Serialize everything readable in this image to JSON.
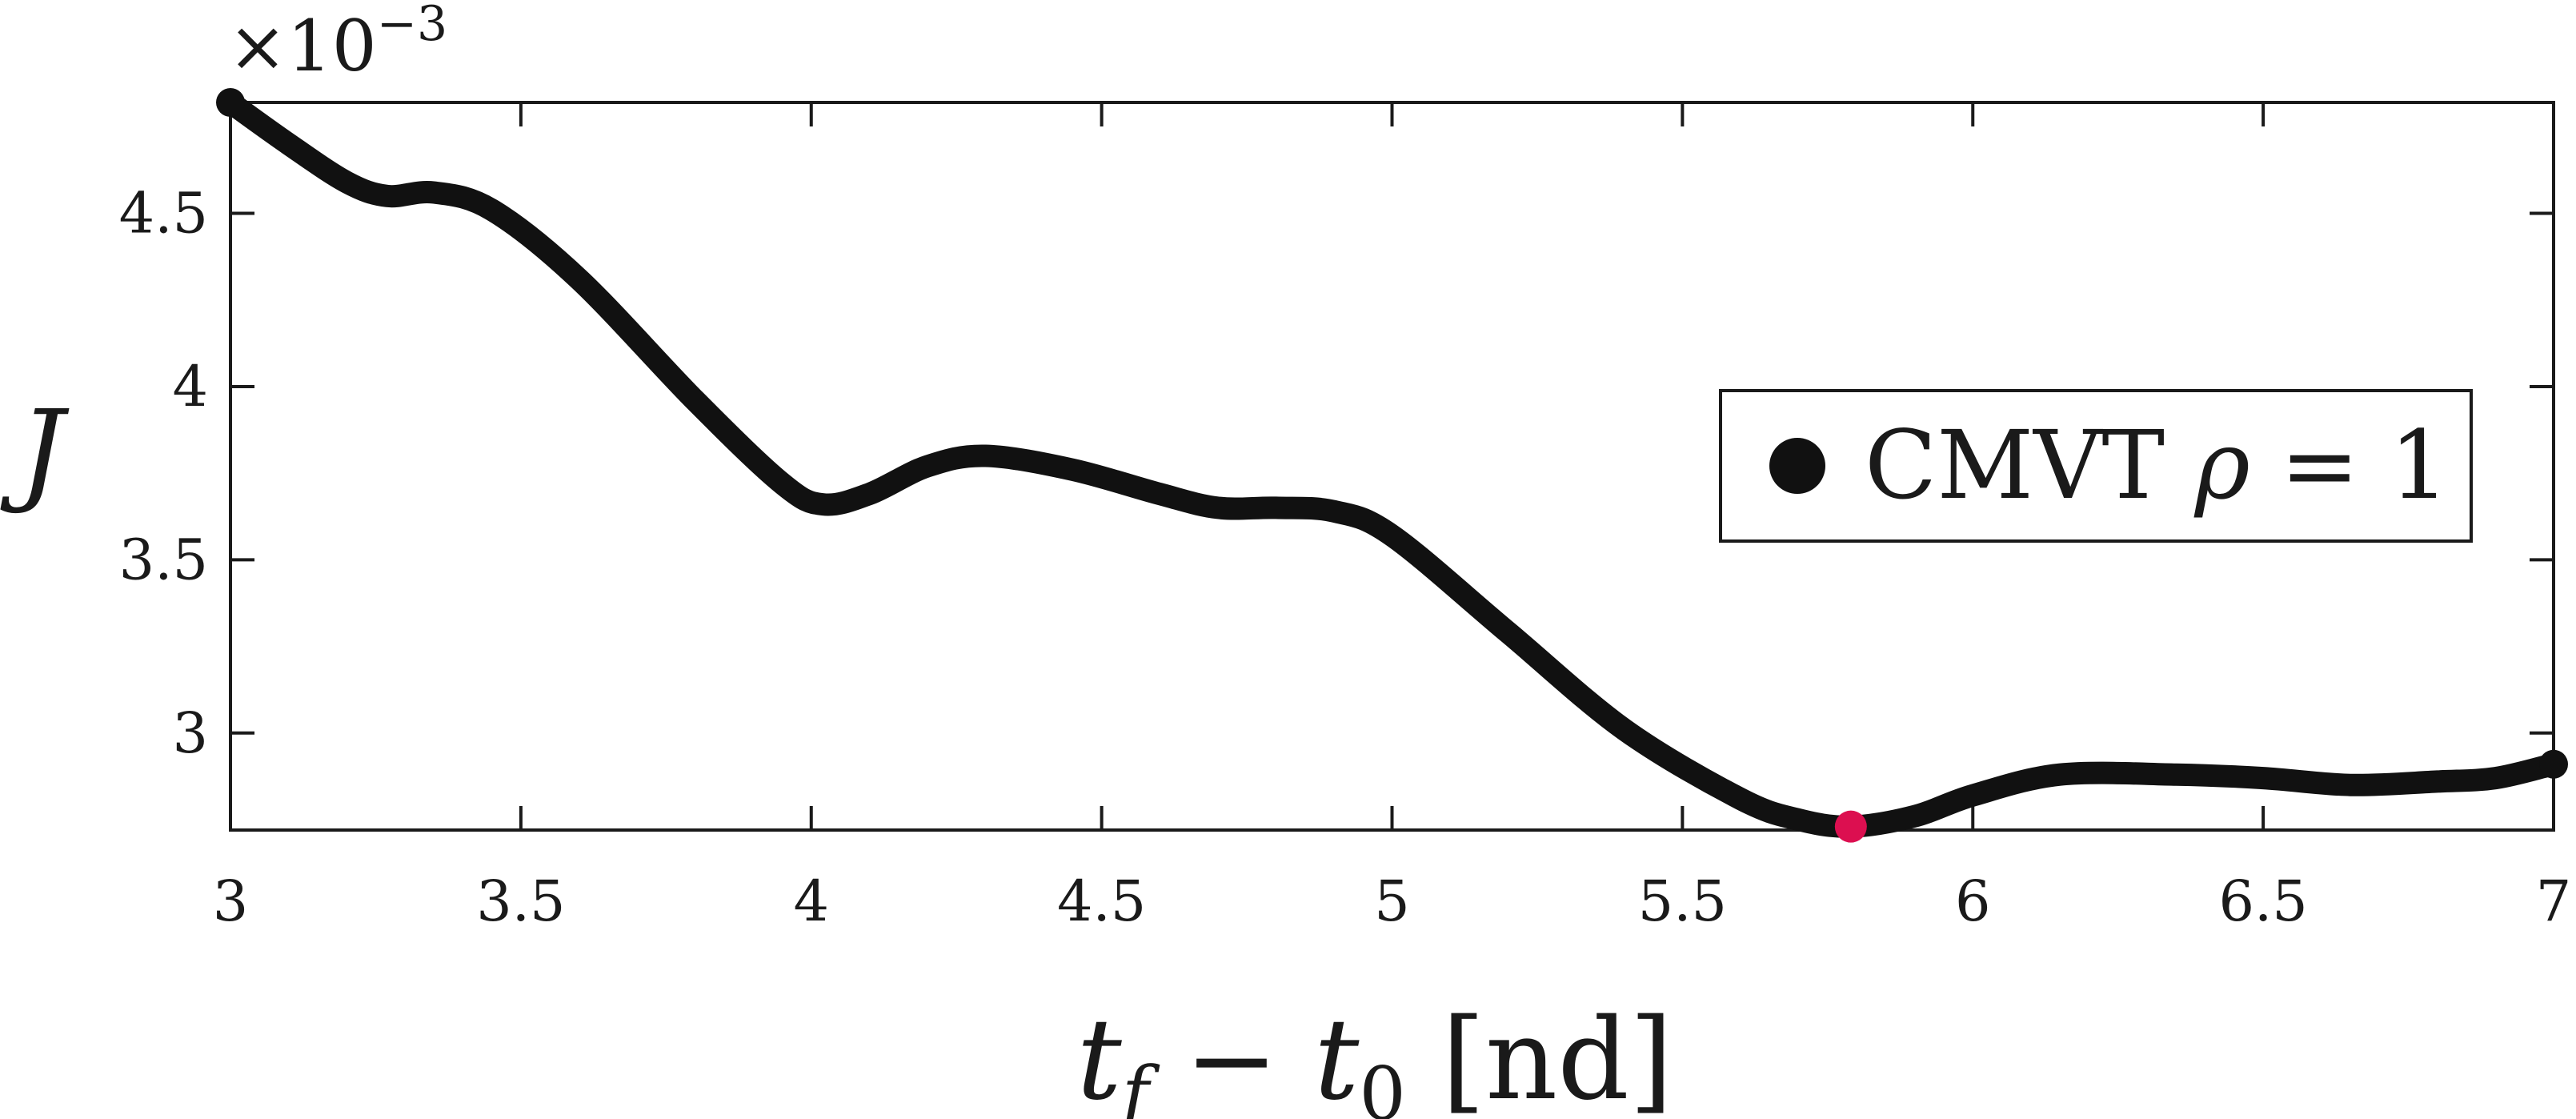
{
  "chart_data": {
    "type": "line",
    "title": "",
    "xlabel": {
      "main": "t",
      "sub1": "f",
      "minus": " − ",
      "main2": "t",
      "sub2": "0",
      "unit": " [nd]"
    },
    "ylabel": "J",
    "y_multiplier": {
      "base": "×10",
      "exp": "−3"
    },
    "xlim": [
      3,
      7
    ],
    "ylim": [
      2.72,
      4.82
    ],
    "xticks": [
      "3",
      "3.5",
      "4",
      "4.5",
      "5",
      "5.5",
      "6",
      "6.5",
      "7"
    ],
    "yticks": [
      "3",
      "3.5",
      "4",
      "4.5"
    ],
    "series": [
      {
        "name": "CMVT ρ = 1",
        "color": "#111111",
        "x": [
          3.0,
          3.1,
          3.2,
          3.27,
          3.35,
          3.45,
          3.6,
          3.8,
          3.95,
          4.02,
          4.1,
          4.2,
          4.3,
          4.45,
          4.6,
          4.7,
          4.8,
          4.9,
          5.0,
          5.2,
          5.4,
          5.6,
          5.7,
          5.79,
          5.9,
          6.0,
          6.15,
          6.35,
          6.5,
          6.65,
          6.8,
          6.9,
          7.0
        ],
        "y": [
          4.82,
          4.7,
          4.59,
          4.55,
          4.56,
          4.51,
          4.31,
          3.96,
          3.72,
          3.66,
          3.69,
          3.77,
          3.8,
          3.76,
          3.69,
          3.65,
          3.65,
          3.64,
          3.57,
          3.29,
          3.01,
          2.81,
          2.75,
          2.73,
          2.76,
          2.82,
          2.88,
          2.88,
          2.87,
          2.85,
          2.86,
          2.87,
          2.91
        ]
      }
    ],
    "highlight": {
      "x": 5.79,
      "y": 2.73,
      "color": "#dc0f50"
    },
    "legend": {
      "location": "right",
      "label_text": "CMVT ",
      "label_symbol": "ρ",
      "label_rest": " = 1"
    },
    "grid": false
  }
}
